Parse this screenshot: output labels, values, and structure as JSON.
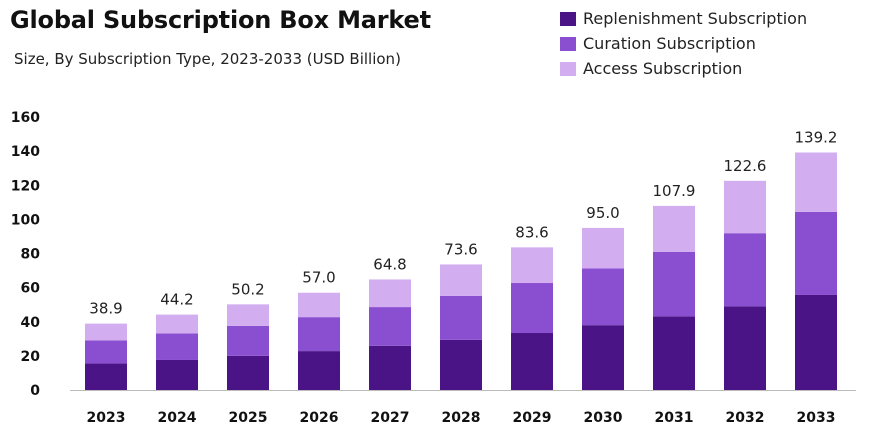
{
  "title": "Global Subscription Box Market",
  "subtitle": "Size, By Subscription Type, 2023-2033 (USD Billion)",
  "legend": [
    {
      "label": "Replenishment Subscription",
      "color": "#4a1486"
    },
    {
      "label": "Curation Subscription",
      "color": "#8a4fd0"
    },
    {
      "label": "Access Subscription",
      "color": "#d2aef0"
    }
  ],
  "chart_data": {
    "type": "bar",
    "stacked": true,
    "categories": [
      "2023",
      "2024",
      "2025",
      "2026",
      "2027",
      "2028",
      "2029",
      "2030",
      "2031",
      "2032",
      "2033"
    ],
    "series": [
      {
        "name": "Replenishment Subscription",
        "color": "#4a1486",
        "values": [
          15.5,
          17.6,
          20.0,
          22.8,
          25.9,
          29.4,
          33.4,
          38.0,
          43.2,
          49.0,
          55.7
        ]
      },
      {
        "name": "Curation Subscription",
        "color": "#8a4fd0",
        "values": [
          13.6,
          15.5,
          17.6,
          19.9,
          22.7,
          25.8,
          29.3,
          33.2,
          37.8,
          42.9,
          48.7
        ]
      },
      {
        "name": "Access Subscription",
        "color": "#d2aef0",
        "values": [
          9.8,
          11.1,
          12.6,
          14.3,
          16.2,
          18.4,
          20.9,
          23.8,
          26.9,
          30.7,
          34.8
        ]
      }
    ],
    "totals": [
      "38.9",
      "44.2",
      "50.2",
      "57.0",
      "64.8",
      "73.6",
      "83.6",
      "95.0",
      "107.9",
      "122.6",
      "139.2"
    ],
    "ylim": [
      0,
      160
    ],
    "yticks": [
      0,
      20,
      40,
      60,
      80,
      100,
      120,
      140,
      160
    ],
    "grid": false
  }
}
